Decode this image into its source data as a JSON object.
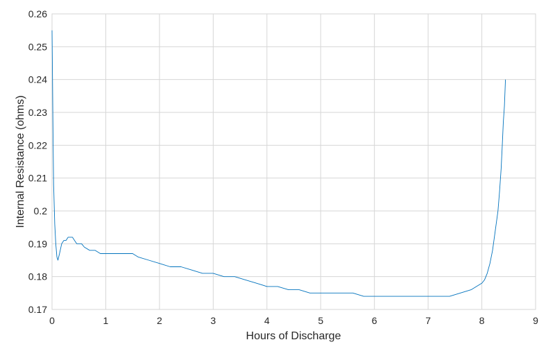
{
  "chart_data": {
    "type": "line",
    "title": "",
    "xlabel": "Hours of Discharge",
    "ylabel": "Internal Resistance (ohms)",
    "xlim": [
      0,
      9
    ],
    "ylim": [
      0.17,
      0.26
    ],
    "xticks": [
      0,
      1,
      2,
      3,
      4,
      5,
      6,
      7,
      8,
      9
    ],
    "xtick_labels": [
      "0",
      "1",
      "2",
      "3",
      "4",
      "5",
      "6",
      "7",
      "8",
      "9"
    ],
    "yticks": [
      0.17,
      0.18,
      0.19,
      0.2,
      0.21,
      0.22,
      0.23,
      0.24,
      0.25,
      0.26
    ],
    "ytick_labels": [
      "0.17",
      "0.18",
      "0.19",
      "0.2",
      "0.21",
      "0.22",
      "0.23",
      "0.24",
      "0.25",
      "0.26"
    ],
    "grid": true,
    "legend": null,
    "series": [
      {
        "color": "#0072BD",
        "x": [
          0.0,
          0.01,
          0.02,
          0.03,
          0.05,
          0.07,
          0.09,
          0.11,
          0.14,
          0.18,
          0.22,
          0.26,
          0.3,
          0.34,
          0.38,
          0.42,
          0.46,
          0.5,
          0.55,
          0.6,
          0.7,
          0.8,
          0.9,
          1.0,
          1.1,
          1.2,
          1.3,
          1.4,
          1.5,
          1.6,
          1.8,
          2.0,
          2.2,
          2.4,
          2.6,
          2.8,
          3.0,
          3.2,
          3.4,
          3.6,
          3.8,
          4.0,
          4.2,
          4.4,
          4.6,
          4.8,
          5.0,
          5.2,
          5.4,
          5.6,
          5.8,
          6.0,
          6.2,
          6.4,
          6.6,
          6.8,
          7.0,
          7.2,
          7.4,
          7.6,
          7.8,
          7.9,
          8.0,
          8.05,
          8.1,
          8.15,
          8.2,
          8.25,
          8.3,
          8.33,
          8.36,
          8.38,
          8.4,
          8.42,
          8.44
        ],
        "y": [
          0.255,
          0.238,
          0.222,
          0.208,
          0.196,
          0.19,
          0.186,
          0.185,
          0.187,
          0.19,
          0.191,
          0.191,
          0.192,
          0.192,
          0.192,
          0.191,
          0.19,
          0.19,
          0.19,
          0.189,
          0.188,
          0.188,
          0.187,
          0.187,
          0.187,
          0.187,
          0.187,
          0.187,
          0.187,
          0.186,
          0.185,
          0.184,
          0.183,
          0.183,
          0.182,
          0.181,
          0.181,
          0.18,
          0.18,
          0.179,
          0.178,
          0.177,
          0.177,
          0.176,
          0.176,
          0.175,
          0.175,
          0.175,
          0.175,
          0.175,
          0.174,
          0.174,
          0.174,
          0.174,
          0.174,
          0.174,
          0.174,
          0.174,
          0.174,
          0.175,
          0.176,
          0.177,
          0.178,
          0.179,
          0.181,
          0.184,
          0.188,
          0.194,
          0.2,
          0.206,
          0.213,
          0.22,
          0.227,
          0.232,
          0.24
        ]
      }
    ]
  }
}
